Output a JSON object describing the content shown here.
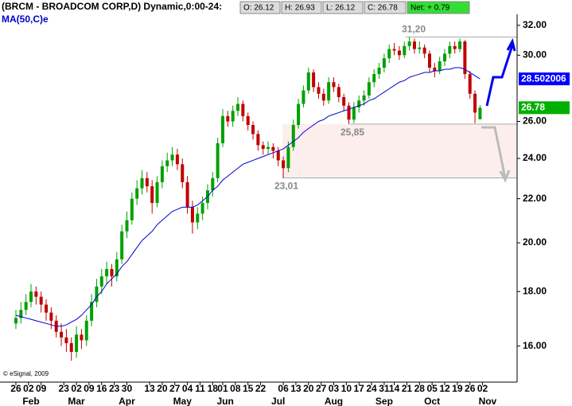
{
  "chart_data": {
    "type": "candlestick",
    "title": "(BRCM - BROADCOM CORP,D) Dynamic,0:00-24:",
    "header_fields": [
      "O: 26.12",
      "H: 26.93",
      "L: 26.12",
      "C: 26.78",
      "Net: + 0.79"
    ],
    "copyright": "© eSignal, 2009",
    "log": true,
    "up_color": "#00a000",
    "down_color": "#c00000",
    "ylim": [
      14.8,
      33.8
    ],
    "yticks": [
      {
        "value": 16,
        "label": "16.00"
      },
      {
        "value": 18,
        "label": "18.00"
      },
      {
        "value": 20,
        "label": "20.00"
      },
      {
        "value": 22,
        "label": "22.00"
      },
      {
        "value": 24,
        "label": "24.00"
      },
      {
        "value": 26,
        "label": "26.00"
      },
      {
        "value": 30,
        "label": "30.00"
      },
      {
        "value": 32,
        "label": "32.00"
      }
    ],
    "xlim": [
      -6.3,
      198.7
    ],
    "xticks": [
      {
        "value": 0,
        "label": "26"
      },
      {
        "value": 5,
        "label": "02"
      },
      {
        "value": 10,
        "label": "09"
      },
      {
        "value": 19,
        "label": "23"
      },
      {
        "value": 24,
        "label": "02"
      },
      {
        "value": 29,
        "label": "09"
      },
      {
        "value": 34,
        "label": "16"
      },
      {
        "value": 39,
        "label": "23"
      },
      {
        "value": 44,
        "label": "30"
      },
      {
        "value": 53,
        "label": "13"
      },
      {
        "value": 58,
        "label": "20"
      },
      {
        "value": 63,
        "label": "27"
      },
      {
        "value": 68,
        "label": "04"
      },
      {
        "value": 73,
        "label": "11"
      },
      {
        "value": 78,
        "label": "18"
      },
      {
        "value": 82,
        "label": "01"
      },
      {
        "value": 87,
        "label": "08"
      },
      {
        "value": 92,
        "label": "15"
      },
      {
        "value": 97,
        "label": "22"
      },
      {
        "value": 106,
        "label": "06"
      },
      {
        "value": 111,
        "label": "13"
      },
      {
        "value": 116,
        "label": "20"
      },
      {
        "value": 121,
        "label": "27"
      },
      {
        "value": 126,
        "label": "03"
      },
      {
        "value": 131,
        "label": "10"
      },
      {
        "value": 136,
        "label": "17"
      },
      {
        "value": 141,
        "label": "24"
      },
      {
        "value": 146,
        "label": "31"
      },
      {
        "value": 150,
        "label": "14"
      },
      {
        "value": 155,
        "label": "21"
      },
      {
        "value": 160,
        "label": "28"
      },
      {
        "value": 165,
        "label": "05"
      },
      {
        "value": 170,
        "label": "12"
      },
      {
        "value": 175,
        "label": "19"
      },
      {
        "value": 180,
        "label": "26"
      },
      {
        "value": 185,
        "label": "02"
      }
    ],
    "month_ticks": [
      {
        "value": 6,
        "label": "Feb"
      },
      {
        "value": 24,
        "label": "Mar"
      },
      {
        "value": 44,
        "label": "Apr"
      },
      {
        "value": 66,
        "label": "May"
      },
      {
        "value": 83,
        "label": "Jun"
      },
      {
        "value": 104,
        "label": "Jul"
      },
      {
        "value": 126,
        "label": "Aug"
      },
      {
        "value": 146,
        "label": "Sep"
      },
      {
        "value": 165,
        "label": "Oct"
      },
      {
        "value": 187,
        "label": "Nov"
      }
    ],
    "x": [
      0,
      2,
      4,
      6,
      8,
      10,
      12,
      14,
      16,
      18,
      20,
      22,
      24,
      26,
      28,
      30,
      32,
      34,
      36,
      38,
      40,
      42,
      44,
      46,
      48,
      50,
      52,
      54,
      56,
      58,
      60,
      62,
      64,
      66,
      68,
      70,
      72,
      74,
      76,
      78,
      80,
      82,
      84,
      86,
      88,
      90,
      92,
      94,
      96,
      98,
      100,
      102,
      104,
      106,
      108,
      110,
      112,
      114,
      116,
      118,
      120,
      122,
      124,
      126,
      128,
      130,
      132,
      134,
      136,
      138,
      140,
      142,
      144,
      146,
      148,
      150,
      152,
      154,
      156,
      158,
      160,
      162,
      164,
      166,
      168,
      170,
      172,
      174,
      176,
      178,
      180,
      182,
      184
    ],
    "ohlc": [
      [
        16.8,
        17.3,
        16.6,
        17.0
      ],
      [
        17.0,
        17.6,
        16.8,
        17.3
      ],
      [
        17.3,
        17.9,
        17.1,
        17.6
      ],
      [
        17.6,
        18.3,
        17.4,
        18.0
      ],
      [
        18.0,
        18.2,
        17.5,
        17.8
      ],
      [
        17.8,
        18.0,
        17.2,
        17.5
      ],
      [
        17.5,
        17.7,
        16.9,
        17.2
      ],
      [
        17.2,
        17.4,
        16.6,
        16.9
      ],
      [
        16.9,
        17.1,
        16.3,
        16.5
      ],
      [
        16.5,
        16.8,
        16.0,
        16.3
      ],
      [
        16.3,
        16.6,
        15.8,
        16.1
      ],
      [
        16.1,
        16.3,
        15.5,
        15.8
      ],
      [
        15.8,
        16.7,
        15.6,
        16.4
      ],
      [
        16.4,
        16.6,
        15.9,
        16.2
      ],
      [
        16.2,
        17.1,
        16.0,
        16.9
      ],
      [
        16.9,
        17.9,
        16.7,
        17.6
      ],
      [
        17.6,
        18.5,
        17.4,
        18.2
      ],
      [
        18.2,
        18.9,
        17.9,
        18.6
      ],
      [
        18.6,
        19.2,
        18.3,
        18.9
      ],
      [
        18.9,
        19.1,
        18.2,
        18.6
      ],
      [
        18.6,
        19.6,
        18.4,
        19.3
      ],
      [
        19.3,
        20.8,
        19.1,
        20.5
      ],
      [
        20.5,
        21.4,
        20.2,
        21.0
      ],
      [
        21.0,
        22.3,
        20.8,
        22.0
      ],
      [
        22.0,
        22.9,
        21.7,
        22.5
      ],
      [
        22.5,
        23.4,
        22.2,
        23.0
      ],
      [
        23.0,
        23.3,
        22.3,
        22.6
      ],
      [
        22.6,
        22.9,
        21.3,
        21.8
      ],
      [
        21.8,
        23.1,
        21.6,
        22.8
      ],
      [
        22.8,
        23.9,
        22.5,
        23.6
      ],
      [
        23.6,
        24.3,
        23.3,
        23.9
      ],
      [
        23.9,
        24.6,
        23.6,
        24.2
      ],
      [
        24.2,
        24.5,
        23.4,
        23.7
      ],
      [
        23.7,
        24.0,
        22.5,
        22.8
      ],
      [
        22.8,
        23.1,
        21.3,
        21.6
      ],
      [
        21.6,
        21.9,
        20.4,
        20.9
      ],
      [
        20.9,
        21.6,
        20.6,
        21.3
      ],
      [
        21.3,
        22.1,
        21.0,
        21.8
      ],
      [
        21.8,
        22.7,
        21.5,
        22.4
      ],
      [
        22.4,
        23.3,
        22.1,
        23.0
      ],
      [
        23.0,
        25.1,
        22.8,
        24.8
      ],
      [
        24.8,
        26.7,
        24.6,
        26.3
      ],
      [
        26.3,
        26.6,
        25.7,
        26.0
      ],
      [
        26.0,
        26.9,
        25.7,
        26.6
      ],
      [
        26.6,
        27.4,
        26.3,
        27.0
      ],
      [
        27.0,
        27.2,
        26.0,
        26.3
      ],
      [
        26.3,
        26.5,
        25.5,
        25.8
      ],
      [
        25.8,
        26.0,
        25.0,
        25.3
      ],
      [
        25.3,
        25.5,
        24.4,
        24.7
      ],
      [
        24.7,
        24.9,
        24.2,
        24.5
      ],
      [
        24.5,
        24.9,
        24.2,
        24.6
      ],
      [
        24.6,
        24.8,
        24.0,
        24.4
      ],
      [
        24.4,
        24.6,
        23.6,
        23.9
      ],
      [
        23.9,
        24.1,
        23.01,
        23.5
      ],
      [
        23.5,
        24.9,
        23.3,
        24.6
      ],
      [
        24.6,
        26.1,
        24.4,
        25.8
      ],
      [
        25.8,
        27.3,
        25.6,
        27.0
      ],
      [
        27.0,
        28.1,
        26.8,
        27.8
      ],
      [
        27.8,
        29.2,
        27.6,
        28.9
      ],
      [
        28.9,
        29.1,
        27.7,
        28.0
      ],
      [
        28.0,
        28.3,
        27.3,
        27.6
      ],
      [
        27.6,
        27.9,
        26.9,
        27.2
      ],
      [
        27.2,
        28.6,
        27.0,
        28.3
      ],
      [
        28.3,
        28.6,
        27.7,
        28.0
      ],
      [
        28.0,
        28.2,
        27.1,
        27.4
      ],
      [
        27.4,
        27.6,
        26.6,
        26.9
      ],
      [
        26.9,
        27.1,
        25.85,
        26.1
      ],
      [
        26.1,
        27.1,
        25.9,
        26.8
      ],
      [
        26.8,
        27.5,
        26.5,
        27.2
      ],
      [
        27.2,
        27.8,
        26.9,
        27.5
      ],
      [
        27.5,
        28.6,
        27.3,
        28.3
      ],
      [
        28.3,
        29.1,
        28.0,
        28.8
      ],
      [
        28.8,
        29.5,
        28.5,
        29.2
      ],
      [
        29.2,
        30.1,
        28.9,
        29.8
      ],
      [
        29.8,
        30.7,
        29.5,
        30.4
      ],
      [
        30.4,
        30.8,
        30.0,
        30.3
      ],
      [
        30.3,
        30.6,
        29.7,
        30.0
      ],
      [
        30.0,
        30.9,
        29.8,
        30.6
      ],
      [
        30.6,
        31.2,
        30.3,
        30.9
      ],
      [
        30.9,
        31.1,
        30.1,
        30.4
      ],
      [
        30.4,
        30.9,
        30.1,
        30.5
      ],
      [
        30.5,
        30.7,
        29.8,
        30.1
      ],
      [
        30.1,
        30.3,
        28.9,
        29.2
      ],
      [
        29.2,
        29.5,
        28.6,
        29.0
      ],
      [
        29.0,
        29.9,
        28.8,
        29.6
      ],
      [
        29.6,
        30.4,
        29.3,
        30.1
      ],
      [
        30.1,
        30.9,
        29.8,
        30.6
      ],
      [
        30.6,
        30.9,
        30.1,
        30.4
      ],
      [
        30.4,
        31.1,
        30.2,
        30.9
      ],
      [
        30.9,
        31.0,
        28.5,
        28.8
      ],
      [
        28.8,
        29.0,
        27.3,
        27.6
      ],
      [
        27.6,
        27.8,
        25.9,
        26.5
      ],
      [
        26.12,
        26.93,
        26.12,
        26.78
      ]
    ],
    "series": [
      {
        "name": "MA(50,C)e",
        "color": "#0000cc",
        "values": [
          17.1,
          17.05,
          17.0,
          16.95,
          16.9,
          16.85,
          16.8,
          16.75,
          16.7,
          16.7,
          16.75,
          16.85,
          16.95,
          17.1,
          17.3,
          17.5,
          17.8,
          18.0,
          18.3,
          18.5,
          18.7,
          19.0,
          19.2,
          19.5,
          19.8,
          20.1,
          20.3,
          20.5,
          20.8,
          21.0,
          21.2,
          21.4,
          21.5,
          21.6,
          21.6,
          21.6,
          21.7,
          21.9,
          22.1,
          22.4,
          22.6,
          22.9,
          23.1,
          23.3,
          23.5,
          23.7,
          23.8,
          23.9,
          24.0,
          24.1,
          24.2,
          24.3,
          24.4,
          24.5,
          24.7,
          24.9,
          25.1,
          25.4,
          25.6,
          25.8,
          26.0,
          26.1,
          26.3,
          26.4,
          26.5,
          26.6,
          26.7,
          26.8,
          26.9,
          27.0,
          27.2,
          27.3,
          27.5,
          27.7,
          27.9,
          28.1,
          28.3,
          28.4,
          28.6,
          28.7,
          28.8,
          28.9,
          28.9,
          29.0,
          29.0,
          29.1,
          29.1,
          29.2,
          29.2,
          29.1,
          28.9,
          28.7,
          28.502006
        ]
      }
    ],
    "last_values": [
      {
        "value": 28.502006,
        "color": "#0000ff"
      },
      {
        "value": 26.78,
        "color": "#00b000"
      }
    ],
    "levels": [
      {
        "value": 31.2,
        "label": "31,20"
      },
      {
        "value": 25.85,
        "label": "25,85"
      },
      {
        "value": 23.01,
        "label": "23,01"
      }
    ],
    "zone_color": "#fdeeee"
  }
}
